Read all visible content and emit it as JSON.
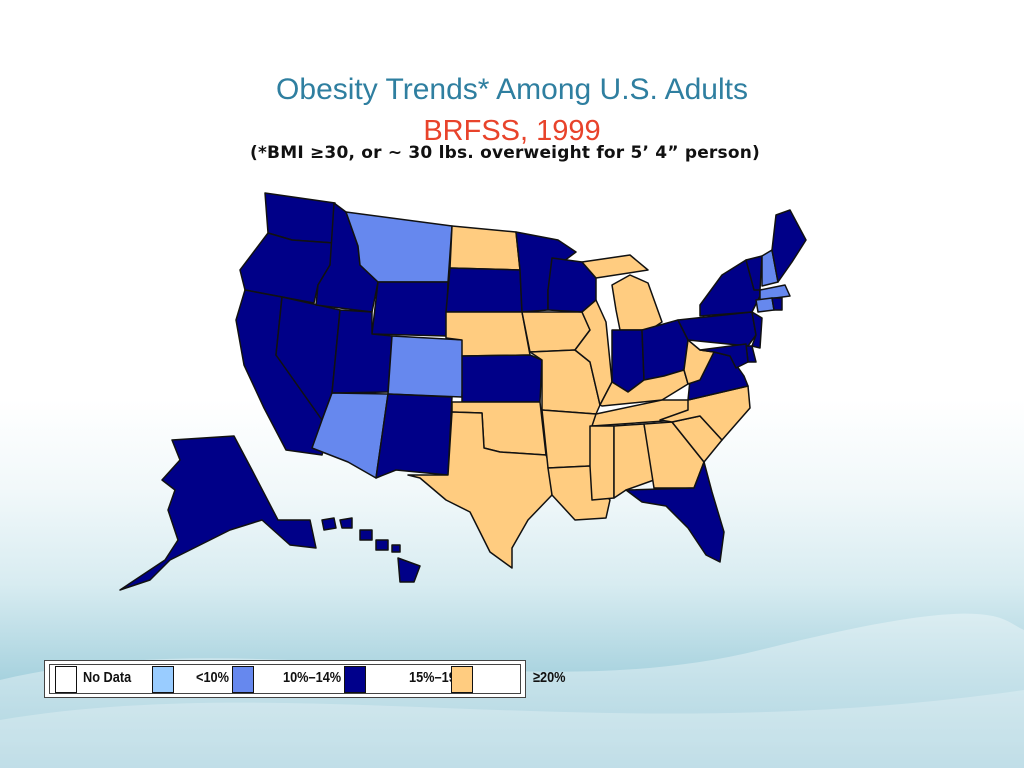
{
  "slide": {
    "title": "Obesity Trends* Among U.S. Adults",
    "subtitle": "BRFSS, 1999",
    "note": "(*BMI ≥30, or ~ 30 lbs. overweight for 5’ 4” person)"
  },
  "legend": {
    "items": [
      {
        "label": "No Data",
        "color": "#ffffff"
      },
      {
        "label": "<10%",
        "color": "#99ccff"
      },
      {
        "label": "10%–14%",
        "color": "#6688ee"
      },
      {
        "label": "15%–19%",
        "color": "#00008b"
      },
      {
        "label": "≥20%",
        "color": "#ffcc80"
      }
    ]
  },
  "map_data": {
    "categories": {
      "dark": "15%–19%",
      "medium": "10%–14%",
      "tan": "≥20%"
    },
    "colors": {
      "dark": "#000088",
      "medium": "#6688ee",
      "tan": "#ffcc80",
      "stroke": "#111111"
    },
    "states": {
      "WA": "dark",
      "OR": "dark",
      "CA": "dark",
      "NV": "dark",
      "ID": "dark",
      "MT": "medium",
      "WY": "dark",
      "UT": "dark",
      "CO": "medium",
      "AZ": "medium",
      "NM": "dark",
      "ND": "tan",
      "SD": "dark",
      "NE": "tan",
      "KS": "dark",
      "OK": "tan",
      "TX": "tan",
      "MN": "dark",
      "IA": "tan",
      "MO": "tan",
      "AR": "tan",
      "LA": "tan",
      "WI": "dark",
      "IL": "tan",
      "MI": "tan",
      "IN": "dark",
      "OH": "dark",
      "KY": "tan",
      "TN": "tan",
      "MS": "tan",
      "AL": "tan",
      "GA": "tan",
      "FL": "dark",
      "SC": "tan",
      "NC": "tan",
      "VA": "dark",
      "WV": "tan",
      "PA": "dark",
      "NY": "dark",
      "VT": "dark",
      "NH": "medium",
      "ME": "dark",
      "MA": "medium",
      "CT": "medium",
      "RI": "dark",
      "NJ": "dark",
      "DE": "dark",
      "MD": "dark",
      "AK": "dark",
      "HI": "dark"
    }
  }
}
